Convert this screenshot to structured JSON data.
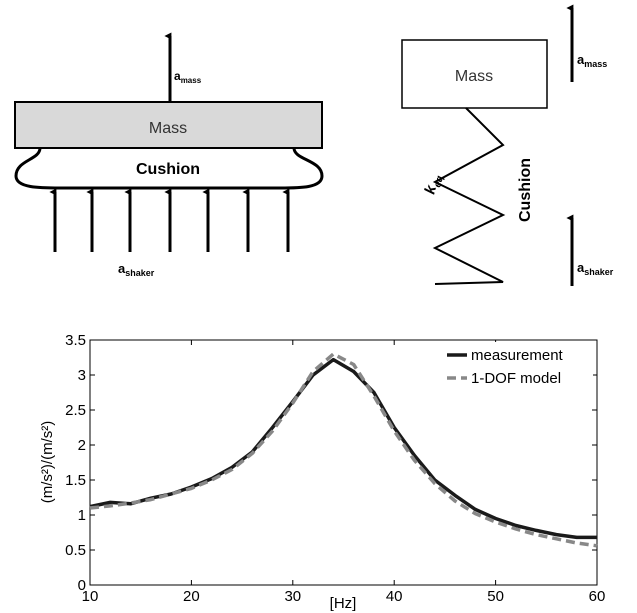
{
  "diagram_left": {
    "mass": "Mass",
    "cushion": "Cushion",
    "top_accel": {
      "symbol": "a",
      "subscript": "mass"
    },
    "bottom_accel": {
      "symbol": "a",
      "subscript": "shaker"
    }
  },
  "diagram_right": {
    "mass": "Mass",
    "cushion": "Cushion",
    "spring": {
      "symbol": "k",
      "subscript": "eq"
    },
    "top_accel": {
      "symbol": "a",
      "subscript": "mass"
    },
    "bottom_accel": {
      "symbol": "a",
      "subscript": "shaker"
    }
  },
  "chart_data": {
    "type": "line",
    "xlabel": "[Hz]",
    "ylabel": "(m/s²)/(m/s²)",
    "x": [
      10,
      12,
      14,
      16,
      18,
      20,
      22,
      24,
      26,
      28,
      30,
      32,
      34,
      36,
      38,
      40,
      42,
      44,
      46,
      48,
      50,
      52,
      54,
      56,
      58,
      60
    ],
    "series": [
      {
        "name": "measurement",
        "color": "#1a1a1a",
        "dash": "none",
        "values": [
          1.12,
          1.18,
          1.16,
          1.24,
          1.3,
          1.4,
          1.52,
          1.68,
          1.9,
          2.25,
          2.62,
          3.0,
          3.22,
          3.05,
          2.75,
          2.25,
          1.85,
          1.5,
          1.28,
          1.08,
          0.95,
          0.85,
          0.78,
          0.72,
          0.68,
          0.68
        ]
      },
      {
        "name": "1-DOF model",
        "color": "#888888",
        "dash": "9 5",
        "values": [
          1.1,
          1.13,
          1.17,
          1.22,
          1.3,
          1.38,
          1.5,
          1.65,
          1.88,
          2.2,
          2.6,
          3.05,
          3.3,
          3.15,
          2.7,
          2.2,
          1.78,
          1.45,
          1.2,
          1.02,
          0.9,
          0.8,
          0.72,
          0.66,
          0.6,
          0.56
        ]
      }
    ],
    "xlim": [
      10,
      60
    ],
    "xticks": [
      10,
      20,
      30,
      40,
      50,
      60
    ],
    "ylim": [
      0,
      3.5
    ],
    "yticks": [
      0,
      0.5,
      1,
      1.5,
      2,
      2.5,
      3,
      3.5
    ],
    "legend": "upper right"
  }
}
